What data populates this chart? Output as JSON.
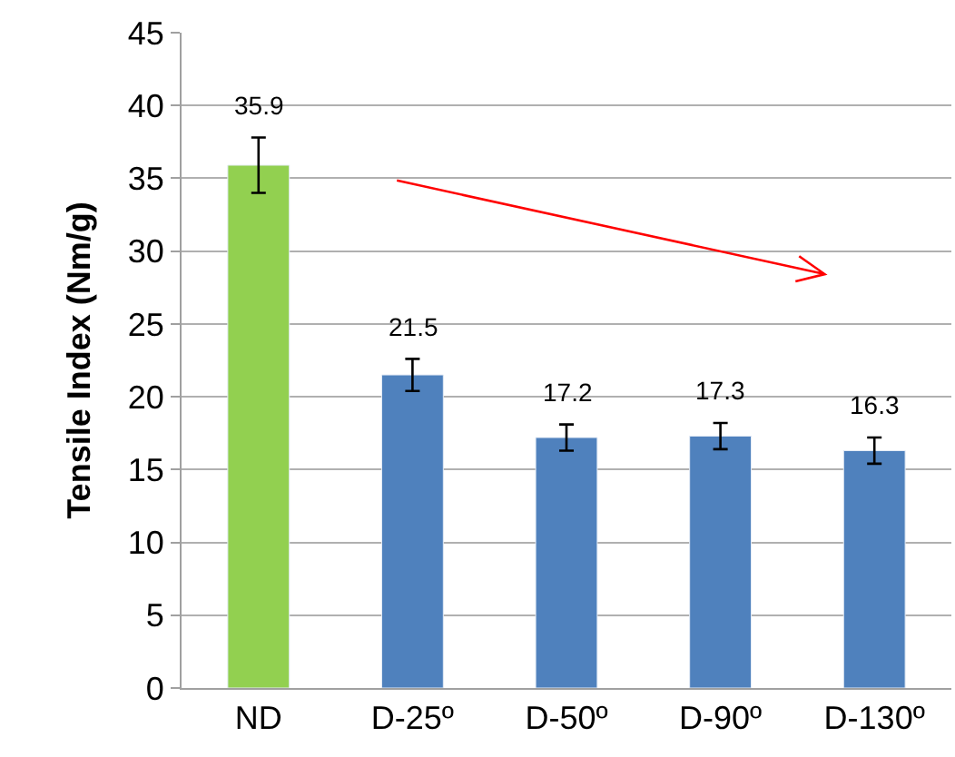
{
  "chart_data": {
    "type": "bar",
    "ylabel": "Tensile Index (Nm/g)",
    "categories": [
      "ND",
      "D-25º",
      "D-50º",
      "D-90º",
      "D-130º"
    ],
    "values": [
      35.9,
      21.5,
      17.2,
      17.3,
      16.3
    ],
    "colors": [
      "#92d050",
      "#4f81bd",
      "#4f81bd",
      "#4f81bd",
      "#4f81bd"
    ],
    "errors": [
      1.9,
      1.1,
      0.9,
      0.9,
      0.9
    ],
    "ylim": [
      0,
      45
    ],
    "yticks": [
      0,
      5,
      10,
      15,
      20,
      25,
      30,
      35,
      40,
      45
    ],
    "grid": "y",
    "legend": false,
    "data_labels": true
  }
}
